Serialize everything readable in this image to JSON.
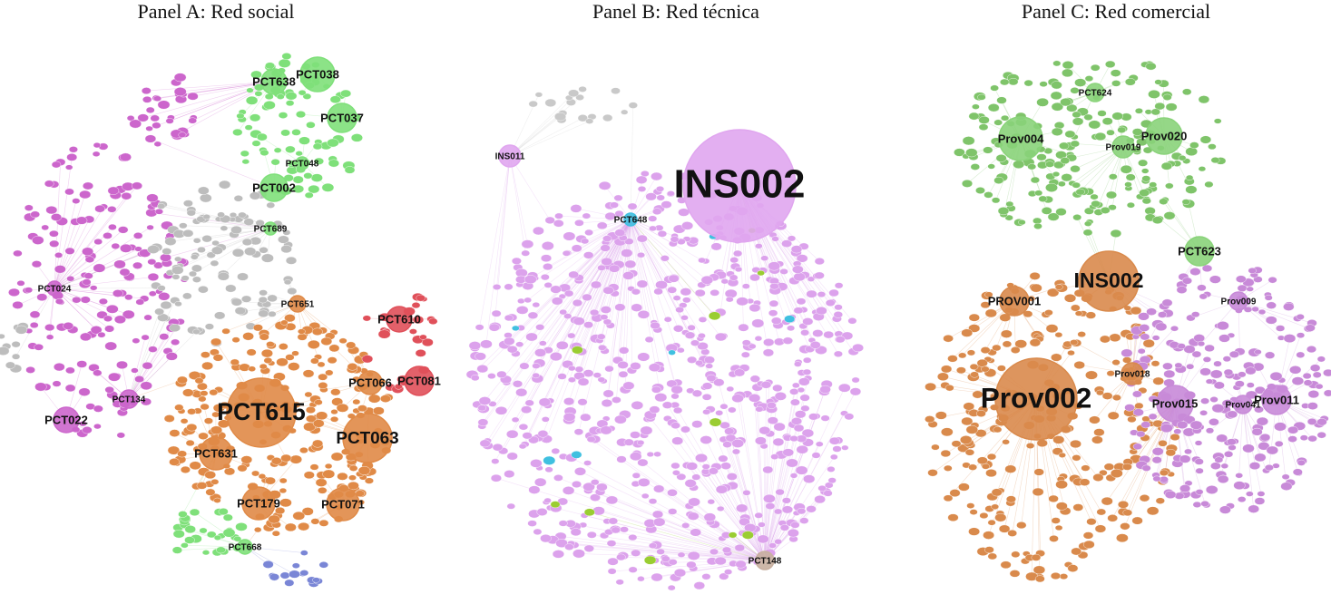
{
  "panels": [
    {
      "title": "Panel A: Red social",
      "nodes": [
        {
          "label": "PCT038",
          "color": "#7fe07a"
        },
        {
          "label": "PCT638",
          "color": "#7fe07a"
        },
        {
          "label": "PCT037",
          "color": "#7fe07a"
        },
        {
          "label": "PCT048",
          "color": "#7fe07a"
        },
        {
          "label": "PCT002",
          "color": "#7fe07a"
        },
        {
          "label": "PCT689",
          "color": "#7fe07a"
        },
        {
          "label": "PCT024",
          "color": "#cc66cc"
        },
        {
          "label": "PCT651",
          "color": "#e08a47"
        },
        {
          "label": "PCT610",
          "color": "#e0505a"
        },
        {
          "label": "PCT081",
          "color": "#e0505a"
        },
        {
          "label": "PCT066",
          "color": "#e08a47"
        },
        {
          "label": "PCT615",
          "color": "#e08a47"
        },
        {
          "label": "PCT063",
          "color": "#e08a47"
        },
        {
          "label": "PCT631",
          "color": "#e08a47"
        },
        {
          "label": "PCT179",
          "color": "#e08a47"
        },
        {
          "label": "PCT071",
          "color": "#e08a47"
        },
        {
          "label": "PCT134",
          "color": "#cc66cc"
        },
        {
          "label": "PCT022",
          "color": "#cc66cc"
        },
        {
          "label": "PCT668",
          "color": "#7fe07a"
        }
      ]
    },
    {
      "title": "Panel B: Red técnica",
      "nodes": [
        {
          "label": "INS002",
          "color": "#e0a6ef"
        },
        {
          "label": "INS011",
          "color": "#e0a6ef"
        },
        {
          "label": "PCT648",
          "color": "#40c0e0"
        },
        {
          "label": "PCT148",
          "color": "#c8b0a0"
        }
      ]
    },
    {
      "title": "Panel C: Red comercial",
      "nodes": [
        {
          "label": "PCT624",
          "color": "#8ad37a"
        },
        {
          "label": "Prov004",
          "color": "#8ad37a"
        },
        {
          "label": "Prov019",
          "color": "#8ad37a"
        },
        {
          "label": "Prov020",
          "color": "#8ad37a"
        },
        {
          "label": "PCT623",
          "color": "#8ad37a"
        },
        {
          "label": "INS002",
          "color": "#d98a4c"
        },
        {
          "label": "PROV001",
          "color": "#d98a4c"
        },
        {
          "label": "Prov009",
          "color": "#c88ad8"
        },
        {
          "label": "Prov002",
          "color": "#d98a4c"
        },
        {
          "label": "Prov018",
          "color": "#d98a4c"
        },
        {
          "label": "Prov015",
          "color": "#c88ad8"
        },
        {
          "label": "Prov041",
          "color": "#c88ad8"
        },
        {
          "label": "Prov011",
          "color": "#c88ad8"
        }
      ]
    }
  ]
}
